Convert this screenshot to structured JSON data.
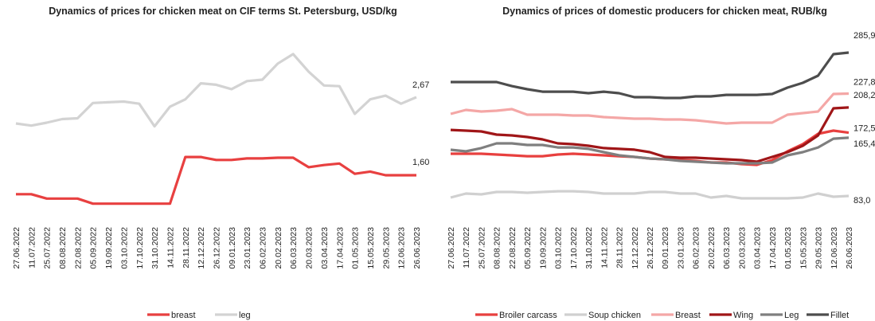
{
  "chart_data": [
    {
      "type": "line",
      "title": "Dynamics of prices for chicken meat on CIF terms St. Petersburg, USD/kg",
      "categories": [
        "27.06.2022",
        "11.07.2022",
        "25.07.2022",
        "08.08.2022",
        "22.08.2022",
        "05.09.2022",
        "19.09.2022",
        "03.10.2022",
        "17.10.2022",
        "31.10.2022",
        "14.11.2022",
        "28.11.2022",
        "12.12.2022",
        "26.12.2022",
        "09.01.2023",
        "23.01.2023",
        "06.02.2023",
        "20.02.2023",
        "06.03.2023",
        "20.03.2023",
        "03.04.2023",
        "17.04.2023",
        "01.05.2023",
        "15.05.2023",
        "29.05.2023",
        "12.06.2023",
        "26.06.2023"
      ],
      "ylim": [
        1.1,
        3.4
      ],
      "legend": "bottom",
      "series": [
        {
          "name": "breast",
          "color": "#e84040",
          "values": [
            1.34,
            1.34,
            1.28,
            1.28,
            1.28,
            1.21,
            1.21,
            1.21,
            1.21,
            1.21,
            1.21,
            1.85,
            1.85,
            1.81,
            1.81,
            1.83,
            1.83,
            1.84,
            1.84,
            1.71,
            1.74,
            1.76,
            1.62,
            1.65,
            1.6,
            1.6,
            1.6
          ],
          "value_labels": [
            null,
            null,
            null,
            null,
            null,
            null,
            null,
            null,
            null,
            null,
            null,
            null,
            null,
            null,
            null,
            null,
            null,
            null,
            null,
            null,
            null,
            null,
            null,
            null,
            null,
            null,
            "1,60"
          ]
        },
        {
          "name": "leg",
          "color": "#d3d3d3",
          "values": [
            2.31,
            2.28,
            2.32,
            2.37,
            2.38,
            2.59,
            2.6,
            2.61,
            2.58,
            2.27,
            2.54,
            2.64,
            2.86,
            2.84,
            2.78,
            2.89,
            2.91,
            3.13,
            3.26,
            3.02,
            2.83,
            2.82,
            2.44,
            2.64,
            2.69,
            2.58,
            2.67
          ],
          "value_labels": [
            null,
            null,
            null,
            null,
            null,
            null,
            null,
            null,
            null,
            null,
            null,
            null,
            null,
            null,
            null,
            null,
            null,
            null,
            null,
            null,
            null,
            null,
            null,
            null,
            null,
            null,
            "2,67"
          ]
        }
      ]
    },
    {
      "type": "line",
      "title": "Dynamics of prices of domestic producers for chicken meat, RUB/kg",
      "categories": [
        "27.06.2022",
        "11.07.2022",
        "25.07.2022",
        "08.08.2022",
        "22.08.2022",
        "05.09.2022",
        "19.09.2022",
        "03.10.2022",
        "17.10.2022",
        "31.10.2022",
        "14.11.2022",
        "28.11.2022",
        "12.12.2022",
        "26.12.2022",
        "09.01.2023",
        "23.01.2023",
        "06.02.2023",
        "20.02.2023",
        "06.03.2023",
        "20.03.2023",
        "03.04.2023",
        "17.04.2023",
        "01.05.2023",
        "15.05.2023",
        "29.05.2023",
        "12.06.2023",
        "26.06.2023"
      ],
      "ylim": [
        60,
        300
      ],
      "legend": "bottom",
      "series": [
        {
          "name": "Broiler carcass",
          "color": "#e8403f",
          "values": [
            142.7,
            142.7,
            142.7,
            141.6,
            140.5,
            139.3,
            139.3,
            141.6,
            142.7,
            141.6,
            140.5,
            139.3,
            138.2,
            136.0,
            134.9,
            133.7,
            132.6,
            130.3,
            130.3,
            128.1,
            127.0,
            133.7,
            146.1,
            156.3,
            170.9,
            175.4,
            172.5
          ],
          "value_labels": [
            null,
            null,
            null,
            null,
            null,
            null,
            null,
            null,
            null,
            null,
            null,
            null,
            null,
            null,
            null,
            null,
            null,
            null,
            null,
            null,
            null,
            null,
            null,
            null,
            null,
            null,
            "172,5"
          ]
        },
        {
          "name": "Soup chicken",
          "color": "#d0d0d0",
          "values": [
            80.7,
            86.4,
            85.2,
            88.6,
            88.6,
            87.5,
            88.6,
            89.7,
            89.7,
            88.6,
            86.4,
            86.4,
            86.4,
            88.6,
            88.6,
            86.4,
            86.4,
            80.7,
            83.0,
            79.6,
            79.6,
            79.6,
            79.6,
            80.7,
            86.4,
            81.9,
            83.0
          ],
          "value_labels": [
            null,
            null,
            null,
            null,
            null,
            null,
            null,
            null,
            null,
            null,
            null,
            null,
            null,
            null,
            null,
            null,
            null,
            null,
            null,
            null,
            null,
            null,
            null,
            null,
            null,
            null,
            "83,0"
          ]
        },
        {
          "name": "Breast",
          "color": "#f4a7a6",
          "values": [
            199.1,
            204.7,
            202.5,
            203.6,
            205.9,
            198.0,
            198.0,
            198.0,
            196.8,
            196.8,
            194.6,
            193.5,
            192.3,
            192.3,
            191.2,
            191.2,
            190.1,
            187.8,
            185.6,
            186.7,
            186.7,
            186.7,
            198.0,
            200.2,
            202.5,
            227.3,
            227.8
          ],
          "value_labels": [
            null,
            null,
            null,
            null,
            null,
            null,
            null,
            null,
            null,
            null,
            null,
            null,
            null,
            null,
            null,
            null,
            null,
            null,
            null,
            null,
            null,
            null,
            null,
            null,
            null,
            null,
            "227,8"
          ]
        },
        {
          "name": "Wing",
          "color": "#a01618",
          "values": [
            176.5,
            175.4,
            174.3,
            169.8,
            168.7,
            166.4,
            163.0,
            157.4,
            156.3,
            154.0,
            150.7,
            149.6,
            148.5,
            145.0,
            138.2,
            137.1,
            137.1,
            136.0,
            134.9,
            133.7,
            131.5,
            138.2,
            145.0,
            154.0,
            168.7,
            207.0,
            208.2
          ],
          "value_labels": [
            null,
            null,
            null,
            null,
            null,
            null,
            null,
            null,
            null,
            null,
            null,
            null,
            null,
            null,
            null,
            null,
            null,
            null,
            null,
            null,
            null,
            null,
            null,
            null,
            null,
            null,
            "208,2"
          ]
        },
        {
          "name": "Leg",
          "color": "#7f7f7f",
          "values": [
            148.4,
            146.1,
            150.7,
            157.4,
            157.4,
            155.1,
            155.1,
            151.7,
            151.7,
            149.6,
            145.0,
            140.5,
            138.2,
            136.0,
            134.9,
            132.6,
            131.5,
            130.3,
            129.2,
            129.2,
            129.2,
            130.3,
            140.5,
            145.0,
            151.7,
            164.1,
            165.4
          ],
          "value_labels": [
            null,
            null,
            null,
            null,
            null,
            null,
            null,
            null,
            null,
            null,
            null,
            null,
            null,
            null,
            null,
            null,
            null,
            null,
            null,
            null,
            null,
            null,
            null,
            null,
            null,
            null,
            "165,4"
          ]
        },
        {
          "name": "Fillet",
          "color": "#4d4d4d",
          "values": [
            244.2,
            244.2,
            244.2,
            244.2,
            238.5,
            234.0,
            230.6,
            230.6,
            230.6,
            228.4,
            230.6,
            228.4,
            222.8,
            222.8,
            221.6,
            221.6,
            223.9,
            223.9,
            226.1,
            226.1,
            226.1,
            227.3,
            236.3,
            243.1,
            253.2,
            283.6,
            285.9
          ],
          "value_labels": [
            null,
            null,
            null,
            null,
            null,
            null,
            null,
            null,
            null,
            null,
            null,
            null,
            null,
            null,
            null,
            null,
            null,
            null,
            null,
            null,
            null,
            null,
            null,
            null,
            null,
            null,
            "285,9"
          ]
        }
      ]
    }
  ]
}
